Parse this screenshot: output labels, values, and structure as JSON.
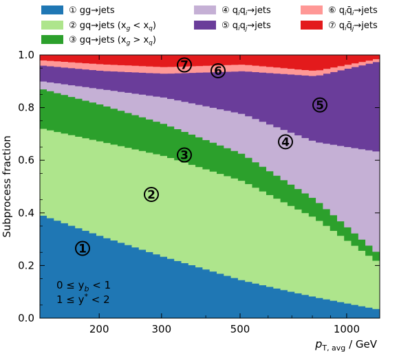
{
  "chart_data": {
    "type": "area",
    "stacked": true,
    "x_scale": "log",
    "xlabel_main": "p",
    "xlabel_sub": "T, avg",
    "xlabel_unit": " / GeV",
    "ylabel": "Subprocess fraction",
    "xlim": [
      136,
      1240
    ],
    "ylim": [
      0.0,
      1.0
    ],
    "grid": false,
    "legend_position": "top, above plot",
    "x_ticks": [
      200,
      300,
      500,
      1000
    ],
    "x_tick_labels": [
      "200",
      "300",
      "500",
      "1000"
    ],
    "y_ticks": [
      0.0,
      0.2,
      0.4,
      0.6,
      0.8,
      1.0
    ],
    "y_tick_labels": [
      "0.0",
      "0.2",
      "0.4",
      "0.6",
      "0.8",
      "1.0"
    ],
    "x": [
      136,
      200,
      300,
      500,
      800,
      1240
    ],
    "series": [
      {
        "name": "gg→jets",
        "marker": "①",
        "color": "#1f77b4",
        "values": [
          0.39,
          0.31,
          0.23,
          0.14,
          0.08,
          0.03
        ]
      },
      {
        "name": "gq→jets (x_g < x_q)",
        "marker": "②",
        "color": "#aee58c",
        "values": [
          0.33,
          0.36,
          0.38,
          0.37,
          0.3,
          0.17
        ]
      },
      {
        "name": "gq→jets (x_g > x_q)",
        "marker": "③",
        "color": "#2ca02c",
        "values": [
          0.15,
          0.14,
          0.12,
          0.1,
          0.07,
          0.03
        ]
      },
      {
        "name": "q_i q_i→jets",
        "marker": "④",
        "color": "#c5b0d5",
        "values": [
          0.03,
          0.06,
          0.1,
          0.15,
          0.22,
          0.4
        ]
      },
      {
        "name": "q_i q_j→jets",
        "marker": "⑤",
        "color": "#6a3d9a",
        "values": [
          0.06,
          0.07,
          0.09,
          0.16,
          0.25,
          0.35
        ]
      },
      {
        "name": "q_i q̄_i→jets",
        "marker": "⑥",
        "color": "#ff9896",
        "values": [
          0.02,
          0.025,
          0.025,
          0.025,
          0.02,
          0.01
        ]
      },
      {
        "name": "q_i q̄_j→jets",
        "marker": "⑦",
        "color": "#e31a1c",
        "values": [
          0.02,
          0.035,
          0.045,
          0.035,
          0.06,
          0.01
        ]
      }
    ],
    "legend": [
      {
        "symbol": "①",
        "text": "gg→jets"
      },
      {
        "symbol": "②",
        "text": "gq→jets (x",
        "sub": "g",
        "mid": " < x",
        "sub2": "q",
        "tail": ")"
      },
      {
        "symbol": "③",
        "text": "gq→jets (x",
        "sub": "g",
        "mid": " > x",
        "sub2": "q",
        "tail": ")"
      },
      {
        "symbol": "④",
        "text": "q",
        "sub": "i",
        "mid": "q",
        "sub2": "i",
        "tail": "→jets"
      },
      {
        "symbol": "⑤",
        "text": "q",
        "sub": "i",
        "mid": "q",
        "sub2": "j",
        "tail": "→jets"
      },
      {
        "symbol": "⑥",
        "text": "q",
        "sub": "i",
        "mid": "q̄",
        "sub2": "i",
        "tail": "→jets"
      },
      {
        "symbol": "⑦",
        "text": "q",
        "sub": "i",
        "mid": "q̄",
        "sub2": "j",
        "tail": "→jets"
      }
    ],
    "annotations": [
      {
        "line": 1,
        "pre": "0 ≤ y",
        "sub": "b",
        "post": " < 1"
      },
      {
        "line": 2,
        "pre": "1 ≤ y",
        "sup": "*",
        "post": " < 2"
      }
    ]
  }
}
